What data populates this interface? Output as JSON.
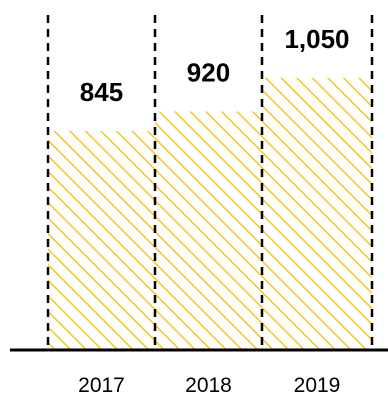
{
  "chart_data": {
    "type": "bar",
    "categories": [
      "2017",
      "2018",
      "2019"
    ],
    "values": [
      845,
      920,
      1050
    ],
    "value_labels": [
      "845",
      "920",
      "1,050"
    ],
    "ylim": [
      0,
      1350
    ],
    "grid": false,
    "bar_fill": "hatched",
    "bar_color": "#f2c81e",
    "divider_color": "#000000",
    "baseline_color": "#000000"
  }
}
